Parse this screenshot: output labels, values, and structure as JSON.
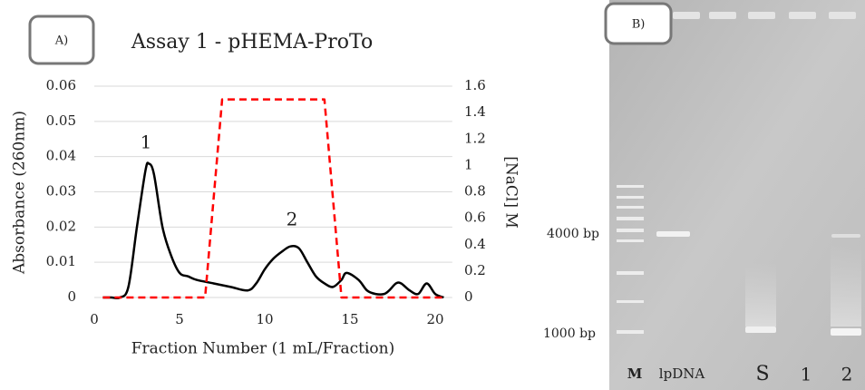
{
  "chart_data": {
    "type": "line",
    "title": "Assay 1 - pHEMA-ProTo",
    "xlabel": "Fraction Number (1 mL/Fraction)",
    "ylabel": "Absorbance (260nm)",
    "y2label": "[NaCl] M",
    "annotations": [
      "1",
      "2"
    ],
    "xlim": [
      0,
      21
    ],
    "xticks": [
      0,
      5,
      10,
      15,
      20
    ],
    "ylim": [
      0,
      0.06
    ],
    "yticks": [
      0,
      0.01,
      0.02,
      0.03,
      0.04,
      0.05,
      0.06
    ],
    "y2lim": [
      0,
      1.6
    ],
    "y2ticks": [
      0,
      0.2,
      0.4,
      0.6,
      0.8,
      1,
      1.2,
      1.4,
      1.6
    ],
    "grid": true,
    "series": [
      {
        "color": "#000000",
        "style": "solid",
        "x": [
          0.5,
          1,
          1.5,
          2,
          2.5,
          3,
          3.2,
          3.5,
          4,
          4.5,
          5,
          5.5,
          6,
          7,
          8,
          9,
          9.5,
          10,
          10.5,
          11,
          11.5,
          12,
          12.5,
          13,
          13.5,
          14,
          14.5,
          14.8,
          15.5,
          16,
          16.5,
          17,
          17.3,
          17.7,
          18,
          18.5,
          19,
          19.5,
          20,
          20.5
        ],
        "values": [
          0,
          0,
          0,
          0.003,
          0.02,
          0.036,
          0.038,
          0.035,
          0.02,
          0.012,
          0.007,
          0.006,
          0.005,
          0.004,
          0.003,
          0.002,
          0.004,
          0.008,
          0.011,
          0.013,
          0.0145,
          0.014,
          0.01,
          0.006,
          0.004,
          0.003,
          0.005,
          0.007,
          0.005,
          0.002,
          0.001,
          0.001,
          0.002,
          0.004,
          0.004,
          0.002,
          0.001,
          0.004,
          0.001,
          0
        ]
      },
      {
        "color": "#ff0000",
        "style": "dashed",
        "axis": "y2",
        "x": [
          0.5,
          6.5,
          7.5,
          13.5,
          14.5,
          20.5
        ],
        "values": [
          0,
          0,
          1.5,
          1.5,
          0,
          0
        ]
      }
    ]
  },
  "panel_labels": [
    "A)",
    "B)"
  ],
  "gel": {
    "size_markers": [
      "4000 bp",
      "1000 bp"
    ],
    "lanes": [
      "M",
      "lpDNA",
      "S",
      "1",
      "2"
    ]
  }
}
